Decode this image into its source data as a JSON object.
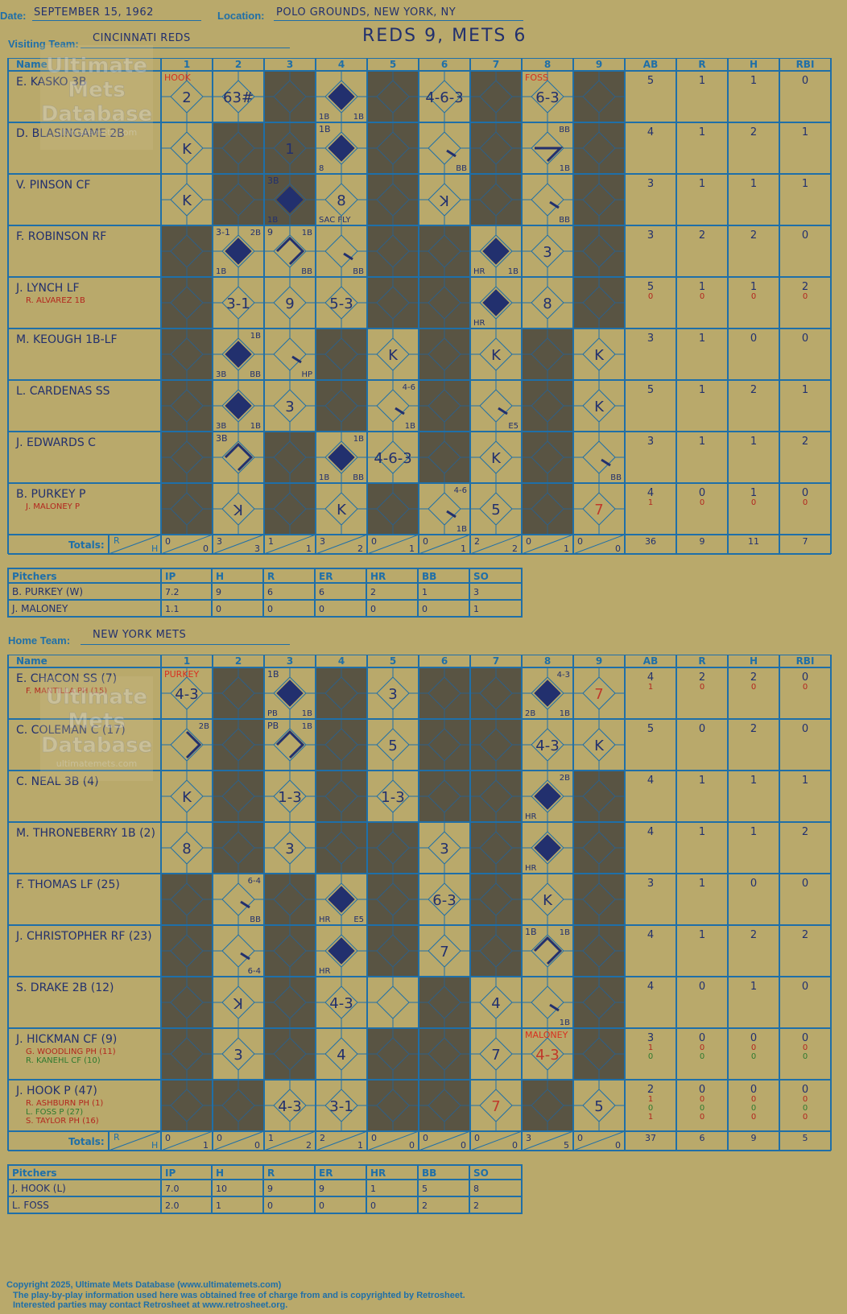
{
  "header": {
    "date_label": "Date:",
    "date": "SEPTEMBER 15, 1962",
    "location_label": "Location:",
    "location": "POLO GROUNDS, NEW YORK, NY",
    "visiting_label": "Visiting Team:",
    "visiting_team": "CINCINNATI REDS",
    "home_label": "Home Team:",
    "home_team": "NEW YORK METS",
    "result": "REDS 9, METS 6"
  },
  "watermark": {
    "lines": [
      "Ultimate",
      "Mets",
      "Database"
    ],
    "url": "ultimatemets.com"
  },
  "columns": {
    "name": "Name",
    "innings": [
      "1",
      "2",
      "3",
      "4",
      "5",
      "6",
      "7",
      "8",
      "9"
    ],
    "stats": [
      "AB",
      "R",
      "H",
      "RBI"
    ],
    "totals_label": "Totals:",
    "r": "R",
    "h": "H"
  },
  "pitch_cols": [
    "Pitchers",
    "IP",
    "H",
    "R",
    "ER",
    "HR",
    "BB",
    "SO"
  ],
  "visitors": {
    "rows": [
      {
        "name": "E. KASKO 3B",
        "subs": [],
        "stats": [
          [
            "5"
          ],
          [
            "1"
          ],
          [
            "1"
          ],
          [
            "0"
          ]
        ]
      },
      {
        "name": "D. BLASINGAME 2B",
        "subs": [],
        "stats": [
          [
            "4"
          ],
          [
            "1"
          ],
          [
            "2"
          ],
          [
            "1"
          ]
        ]
      },
      {
        "name": "V. PINSON CF",
        "subs": [],
        "stats": [
          [
            "3"
          ],
          [
            "1"
          ],
          [
            "1"
          ],
          [
            "1"
          ]
        ]
      },
      {
        "name": "F. ROBINSON RF",
        "subs": [],
        "stats": [
          [
            "3"
          ],
          [
            "2"
          ],
          [
            "2"
          ],
          [
            "0"
          ]
        ]
      },
      {
        "name": "J. LYNCH LF",
        "subs": [
          {
            "n": "R. ALVAREZ 1B",
            "c": "#b3261e"
          }
        ],
        "stats": [
          [
            "5",
            "0"
          ],
          [
            "1",
            "0"
          ],
          [
            "1",
            "0"
          ],
          [
            "2",
            "0"
          ]
        ]
      },
      {
        "name": "M. KEOUGH 1B-LF",
        "subs": [],
        "stats": [
          [
            "3"
          ],
          [
            "1"
          ],
          [
            "0"
          ],
          [
            "0"
          ]
        ]
      },
      {
        "name": "L. CARDENAS SS",
        "subs": [],
        "stats": [
          [
            "5"
          ],
          [
            "1"
          ],
          [
            "2"
          ],
          [
            "1"
          ]
        ]
      },
      {
        "name": "J. EDWARDS C",
        "subs": [],
        "stats": [
          [
            "3"
          ],
          [
            "1"
          ],
          [
            "1"
          ],
          [
            "2"
          ]
        ]
      },
      {
        "name": "B. PURKEY P",
        "subs": [
          {
            "n": "J. MALONEY P",
            "c": "#b3261e"
          }
        ],
        "stats": [
          [
            "4",
            "1"
          ],
          [
            "0",
            "0"
          ],
          [
            "1",
            "0"
          ],
          [
            "0",
            "0"
          ]
        ]
      }
    ],
    "shaded": [
      [
        3,
        5,
        7,
        9
      ],
      [
        2,
        3,
        5,
        7,
        9
      ],
      [
        2,
        3,
        5,
        7,
        9
      ],
      [
        1,
        5,
        6,
        9
      ],
      [
        1,
        5,
        6,
        9
      ],
      [
        1,
        4,
        6,
        8
      ],
      [
        1,
        4,
        6,
        8
      ],
      [
        1,
        3,
        6,
        8
      ],
      [
        1,
        3,
        5,
        8
      ]
    ],
    "plays": [
      {
        "r": 0,
        "i": 1,
        "t": "2",
        "tl": {
          "t": "HOOK",
          "c": "#d83020"
        }
      },
      {
        "r": 0,
        "i": 2,
        "t": "63#"
      },
      {
        "r": 0,
        "i": 4,
        "run": true,
        "bl": "1B",
        "br": "1B"
      },
      {
        "r": 0,
        "i": 6,
        "t": "4-6-3"
      },
      {
        "r": 0,
        "i": 8,
        "t": "6-3",
        "tl": {
          "t": "FOSS",
          "c": "#d83020"
        }
      },
      {
        "r": 1,
        "i": 1,
        "t": "K"
      },
      {
        "r": 1,
        "i": 3,
        "t": "1"
      },
      {
        "r": 1,
        "i": 4,
        "run": true,
        "tl": {
          "t": "1B"
        },
        "bl": "8"
      },
      {
        "r": 1,
        "i": 6,
        "slash": true,
        "br": "BB"
      },
      {
        "r": 1,
        "i": 8,
        "path": "13",
        "tr": "BB",
        "br": "1B"
      },
      {
        "r": 2,
        "i": 1,
        "t": "K"
      },
      {
        "r": 2,
        "i": 3,
        "run": true,
        "tl": {
          "t": "3B"
        },
        "bl": "1B"
      },
      {
        "r": 2,
        "i": 4,
        "t": "8",
        "bl": "SAC FLY"
      },
      {
        "r": 2,
        "i": 6,
        "t": "K",
        "rev": true
      },
      {
        "r": 2,
        "i": 8,
        "slash": true,
        "br": "BB"
      },
      {
        "r": 3,
        "i": 2,
        "run": true,
        "tl": {
          "t": "3-1"
        },
        "tr": "2B",
        "bl": "1B"
      },
      {
        "r": 3,
        "i": 3,
        "path": "123",
        "tl": {
          "t": "9"
        },
        "tr": "1B",
        "br": "BB"
      },
      {
        "r": 3,
        "i": 4,
        "slash": true,
        "br": "BB"
      },
      {
        "r": 3,
        "i": 7,
        "run": true,
        "bl": "HR",
        "br": "1B"
      },
      {
        "r": 3,
        "i": 8,
        "t": "3"
      },
      {
        "r": 4,
        "i": 2,
        "t": "3-1"
      },
      {
        "r": 4,
        "i": 3,
        "t": "9"
      },
      {
        "r": 4,
        "i": 4,
        "t": "5-3"
      },
      {
        "r": 4,
        "i": 7,
        "run": true,
        "bl": "HR"
      },
      {
        "r": 4,
        "i": 8,
        "t": "8"
      },
      {
        "r": 5,
        "i": 2,
        "run": true,
        "tr": "1B",
        "bl": "3B",
        "br": "BB"
      },
      {
        "r": 5,
        "i": 3,
        "slash": true,
        "br": "HP"
      },
      {
        "r": 5,
        "i": 5,
        "t": "K"
      },
      {
        "r": 5,
        "i": 7,
        "t": "K"
      },
      {
        "r": 5,
        "i": 9,
        "t": "K"
      },
      {
        "r": 6,
        "i": 2,
        "run": true,
        "bl": "3B",
        "br": "1B"
      },
      {
        "r": 6,
        "i": 3,
        "t": "3"
      },
      {
        "r": 6,
        "i": 5,
        "slash": true,
        "tr": "4-6",
        "br": "1B"
      },
      {
        "r": 6,
        "i": 7,
        "slash": true,
        "br": "E5"
      },
      {
        "r": 6,
        "i": 9,
        "t": "K"
      },
      {
        "r": 7,
        "i": 2,
        "path": "123",
        "tl": {
          "t": "3B"
        }
      },
      {
        "r": 7,
        "i": 4,
        "run": true,
        "tr": "1B",
        "bl": "1B",
        "br": "BB"
      },
      {
        "r": 7,
        "i": 5,
        "t": "4-6-3"
      },
      {
        "r": 7,
        "i": 7,
        "t": "K"
      },
      {
        "r": 7,
        "i": 9,
        "slash": true,
        "br": "BB"
      },
      {
        "r": 8,
        "i": 2,
        "t": "K",
        "rev": true
      },
      {
        "r": 8,
        "i": 4,
        "t": "K"
      },
      {
        "r": 8,
        "i": 6,
        "slash": true,
        "tr": "4-6",
        "br": "1B"
      },
      {
        "r": 8,
        "i": 7,
        "t": "5"
      },
      {
        "r": 8,
        "i": 9,
        "t": "7",
        "c": "#c0392b"
      }
    ],
    "totals": [
      [
        "0",
        "0"
      ],
      [
        "3",
        "3"
      ],
      [
        "1",
        "1"
      ],
      [
        "3",
        "2"
      ],
      [
        "0",
        "1"
      ],
      [
        "0",
        "1"
      ],
      [
        "2",
        "2"
      ],
      [
        "0",
        "1"
      ],
      [
        "0",
        "0"
      ]
    ],
    "totals_stats": [
      "36",
      "9",
      "11",
      "7"
    ],
    "pitchers": [
      [
        "B. PURKEY (W)",
        "7.2",
        "9",
        "6",
        "6",
        "2",
        "1",
        "3"
      ],
      [
        "J. MALONEY",
        "1.1",
        "0",
        "0",
        "0",
        "0",
        "0",
        "1"
      ]
    ]
  },
  "home": {
    "rows": [
      {
        "name": "E. CHACON SS (7)",
        "subs": [
          {
            "n": "F. MANTILLA PH (15)",
            "c": "#b3261e"
          }
        ],
        "stats": [
          [
            "4",
            "1"
          ],
          [
            "2",
            "0"
          ],
          [
            "2",
            "0"
          ],
          [
            "0",
            "0"
          ]
        ]
      },
      {
        "name": "C. COLEMAN C (17)",
        "subs": [],
        "stats": [
          [
            "5"
          ],
          [
            "0"
          ],
          [
            "2"
          ],
          [
            "0"
          ]
        ]
      },
      {
        "name": "C. NEAL 3B (4)",
        "subs": [],
        "stats": [
          [
            "4"
          ],
          [
            "1"
          ],
          [
            "1"
          ],
          [
            "1"
          ]
        ]
      },
      {
        "name": "M. THRONEBERRY 1B (2)",
        "subs": [],
        "stats": [
          [
            "4"
          ],
          [
            "1"
          ],
          [
            "1"
          ],
          [
            "2"
          ]
        ]
      },
      {
        "name": "F. THOMAS LF (25)",
        "subs": [],
        "stats": [
          [
            "3"
          ],
          [
            "1"
          ],
          [
            "0"
          ],
          [
            "0"
          ]
        ]
      },
      {
        "name": "J. CHRISTOPHER RF (23)",
        "subs": [],
        "stats": [
          [
            "4"
          ],
          [
            "1"
          ],
          [
            "2"
          ],
          [
            "2"
          ]
        ]
      },
      {
        "name": "S. DRAKE 2B (12)",
        "subs": [],
        "stats": [
          [
            "4"
          ],
          [
            "0"
          ],
          [
            "1"
          ],
          [
            "0"
          ]
        ]
      },
      {
        "name": "J. HICKMAN CF (9)",
        "subs": [
          {
            "n": "G. WOODLING PH (11)",
            "c": "#b3261e"
          },
          {
            "n": "R. KANEHL CF (10)",
            "c": "#2f7a2f"
          }
        ],
        "stats": [
          [
            "3",
            "1",
            "0"
          ],
          [
            "0",
            "0",
            "0"
          ],
          [
            "0",
            "0",
            "0"
          ],
          [
            "0",
            "0",
            "0"
          ]
        ]
      },
      {
        "name": "J. HOOK P (47)",
        "subs": [
          {
            "n": "R. ASHBURN PH (1)",
            "c": "#b3261e"
          },
          {
            "n": "L. FOSS P (27)",
            "c": "#2f7a2f"
          },
          {
            "n": "S. TAYLOR PH (16)",
            "c": "#b3261e"
          }
        ],
        "stats": [
          [
            "2",
            "1",
            "0",
            "1"
          ],
          [
            "0",
            "0",
            "0",
            "0"
          ],
          [
            "0",
            "0",
            "0",
            "0"
          ],
          [
            "0",
            "0",
            "0",
            "0"
          ]
        ]
      }
    ],
    "shaded": [
      [
        2,
        4,
        6,
        7
      ],
      [
        2,
        4,
        6,
        7
      ],
      [
        2,
        4,
        6,
        7,
        9
      ],
      [
        2,
        4,
        5,
        7,
        9
      ],
      [
        1,
        3,
        5,
        7,
        9
      ],
      [
        1,
        3,
        5,
        7,
        9
      ],
      [
        1,
        3,
        6,
        9
      ],
      [
        1,
        3,
        5,
        6,
        9
      ],
      [
        1,
        2,
        5,
        6,
        8
      ]
    ],
    "plays": [
      {
        "r": 0,
        "i": 1,
        "t": "4-3",
        "tl": {
          "t": "PURKEY",
          "c": "#d83020"
        }
      },
      {
        "r": 0,
        "i": 3,
        "run": true,
        "tl": {
          "t": "1B"
        },
        "bl": "PB",
        "br": "1B"
      },
      {
        "r": 0,
        "i": 5,
        "t": "3"
      },
      {
        "r": 0,
        "i": 8,
        "run": true,
        "tr": "4-3",
        "bl": "2B",
        "br": "1B"
      },
      {
        "r": 0,
        "i": 9,
        "t": "7",
        "c": "#c0392b"
      },
      {
        "r": 1,
        "i": 1,
        "path": "12",
        "tr": "2B"
      },
      {
        "r": 1,
        "i": 3,
        "path": "123",
        "tl": {
          "t": "PB"
        },
        "tr": "1B"
      },
      {
        "r": 1,
        "i": 5,
        "t": "5"
      },
      {
        "r": 1,
        "i": 8,
        "t": "4-3"
      },
      {
        "r": 1,
        "i": 9,
        "t": "K"
      },
      {
        "r": 2,
        "i": 1,
        "t": "K"
      },
      {
        "r": 2,
        "i": 3,
        "t": "1-3"
      },
      {
        "r": 2,
        "i": 5,
        "t": "1-3"
      },
      {
        "r": 2,
        "i": 8,
        "run": true,
        "tr": "2B",
        "bl": "HR"
      },
      {
        "r": 3,
        "i": 1,
        "t": "8"
      },
      {
        "r": 3,
        "i": 3,
        "t": "3"
      },
      {
        "r": 3,
        "i": 6,
        "t": "3"
      },
      {
        "r": 3,
        "i": 8,
        "run": true,
        "bl": "HR"
      },
      {
        "r": 4,
        "i": 2,
        "slash": true,
        "tr": "6-4",
        "br": "BB"
      },
      {
        "r": 4,
        "i": 4,
        "run": true,
        "bl": "HR",
        "br": "E5"
      },
      {
        "r": 4,
        "i": 6,
        "t": "6-3"
      },
      {
        "r": 4,
        "i": 8,
        "t": "K"
      },
      {
        "r": 5,
        "i": 2,
        "slash": true,
        "br": "6-4"
      },
      {
        "r": 5,
        "i": 4,
        "run": true,
        "bl": "HR"
      },
      {
        "r": 5,
        "i": 6,
        "t": "7"
      },
      {
        "r": 5,
        "i": 8,
        "path": "123",
        "tl": {
          "t": "1B"
        },
        "tr": "1B"
      },
      {
        "r": 6,
        "i": 2,
        "t": "K",
        "rev": true
      },
      {
        "r": 6,
        "i": 4,
        "t": "4-3"
      },
      {
        "r": 6,
        "i": 7,
        "t": "4"
      },
      {
        "r": 6,
        "i": 8,
        "slash": true,
        "br": "1B"
      },
      {
        "r": 7,
        "i": 2,
        "t": "3"
      },
      {
        "r": 7,
        "i": 4,
        "t": "4"
      },
      {
        "r": 7,
        "i": 7,
        "t": "7"
      },
      {
        "r": 7,
        "i": 8,
        "t": "4-3",
        "c": "#c0392b",
        "tl": {
          "t": "MALONEY",
          "c": "#d83020"
        }
      },
      {
        "r": 8,
        "i": 3,
        "t": "4-3"
      },
      {
        "r": 8,
        "i": 4,
        "t": "3-1"
      },
      {
        "r": 8,
        "i": 7,
        "t": "7",
        "c": "#c0392b"
      },
      {
        "r": 8,
        "i": 9,
        "t": "5"
      }
    ],
    "totals": [
      [
        "0",
        "1"
      ],
      [
        "0",
        "0"
      ],
      [
        "1",
        "2"
      ],
      [
        "2",
        "1"
      ],
      [
        "0",
        "0"
      ],
      [
        "0",
        "0"
      ],
      [
        "0",
        "0"
      ],
      [
        "3",
        "5"
      ],
      [
        "0",
        "0"
      ]
    ],
    "totals_stats": [
      "37",
      "6",
      "9",
      "5"
    ],
    "pitchers": [
      [
        "J. HOOK (L)",
        "7.0",
        "10",
        "9",
        "9",
        "1",
        "5",
        "8"
      ],
      [
        "L. FOSS",
        "2.0",
        "1",
        "0",
        "0",
        "0",
        "2",
        "2"
      ]
    ]
  },
  "footer": {
    "line1": "Copyright 2025, Ultimate Mets Database (www.ultimatemets.com)",
    "line2": "The play-by-play information used here was obtained free of charge from and is copyrighted by Retrosheet.",
    "line3": "Interested parties may contact Retrosheet at www.retrosheet.org."
  },
  "colors": {
    "grid": "#1f6fa8",
    "shade": "#595443",
    "ink": "#22306e",
    "bg": "#b9a96b"
  }
}
